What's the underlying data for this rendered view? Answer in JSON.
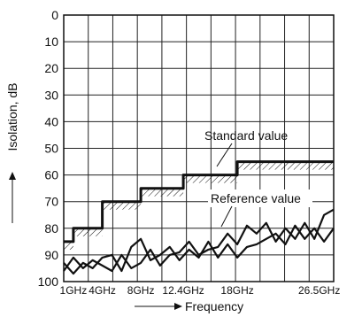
{
  "chart_data": {
    "type": "line",
    "xlabel": "Frequency",
    "ylabel": "Isolation, dB",
    "ylim": [
      0,
      100
    ],
    "y_inverted": true,
    "y_ticks": [
      "0",
      "10",
      "20",
      "30",
      "40",
      "50",
      "60",
      "70",
      "80",
      "90",
      "100"
    ],
    "xlim": [
      0,
      28
    ],
    "x_ticks": [
      {
        "label": "1GHz",
        "value": 1
      },
      {
        "label": "4GHz",
        "value": 4
      },
      {
        "label": "8GHz",
        "value": 8
      },
      {
        "label": "12.4GHz",
        "value": 12.4
      },
      {
        "label": "18GHz",
        "value": 18
      },
      {
        "label": "26.5GHz",
        "value": 26.5
      }
    ],
    "grid": true,
    "series": [
      {
        "name": "Standard value",
        "style": "step",
        "points": [
          [
            0,
            85
          ],
          [
            1,
            85
          ],
          [
            1,
            80
          ],
          [
            4,
            80
          ],
          [
            4,
            70
          ],
          [
            8,
            70
          ],
          [
            8,
            65
          ],
          [
            12.4,
            65
          ],
          [
            12.4,
            60
          ],
          [
            18,
            60
          ],
          [
            18,
            55
          ],
          [
            28,
            55
          ]
        ]
      },
      {
        "name": "Reference value",
        "style": "noisy",
        "points": [
          [
            0,
            96
          ],
          [
            1,
            91
          ],
          [
            2,
            95
          ],
          [
            3,
            92
          ],
          [
            4,
            94
          ],
          [
            5,
            96
          ],
          [
            6,
            90
          ],
          [
            7,
            95
          ],
          [
            8,
            93
          ],
          [
            9,
            88
          ],
          [
            10,
            94
          ],
          [
            11,
            90
          ],
          [
            12,
            89
          ],
          [
            13,
            85
          ],
          [
            14,
            90
          ],
          [
            15,
            88
          ],
          [
            16,
            87
          ],
          [
            17,
            82
          ],
          [
            18,
            86
          ],
          [
            19,
            79
          ],
          [
            20,
            82
          ],
          [
            21,
            78
          ],
          [
            22,
            85
          ],
          [
            23,
            80
          ],
          [
            24,
            84
          ],
          [
            25,
            78
          ],
          [
            26,
            84
          ],
          [
            27,
            75
          ],
          [
            28,
            73
          ]
        ]
      },
      {
        "name": "",
        "style": "noisy",
        "points": [
          [
            0,
            93
          ],
          [
            1,
            97
          ],
          [
            2,
            93
          ],
          [
            3,
            95
          ],
          [
            4,
            91
          ],
          [
            5,
            90
          ],
          [
            6,
            96
          ],
          [
            7,
            87
          ],
          [
            8,
            84
          ],
          [
            9,
            92
          ],
          [
            10,
            90
          ],
          [
            11,
            87
          ],
          [
            12,
            92
          ],
          [
            13,
            88
          ],
          [
            14,
            91
          ],
          [
            15,
            85
          ],
          [
            16,
            91
          ],
          [
            17,
            86
          ],
          [
            18,
            91
          ],
          [
            19,
            87
          ],
          [
            20,
            86
          ],
          [
            21,
            84
          ],
          [
            22,
            82
          ],
          [
            23,
            86
          ],
          [
            24,
            79
          ],
          [
            25,
            84
          ],
          [
            26,
            80
          ],
          [
            27,
            85
          ],
          [
            28,
            80
          ]
        ]
      }
    ],
    "annotations": [
      "Standard value",
      "Reference value"
    ]
  }
}
